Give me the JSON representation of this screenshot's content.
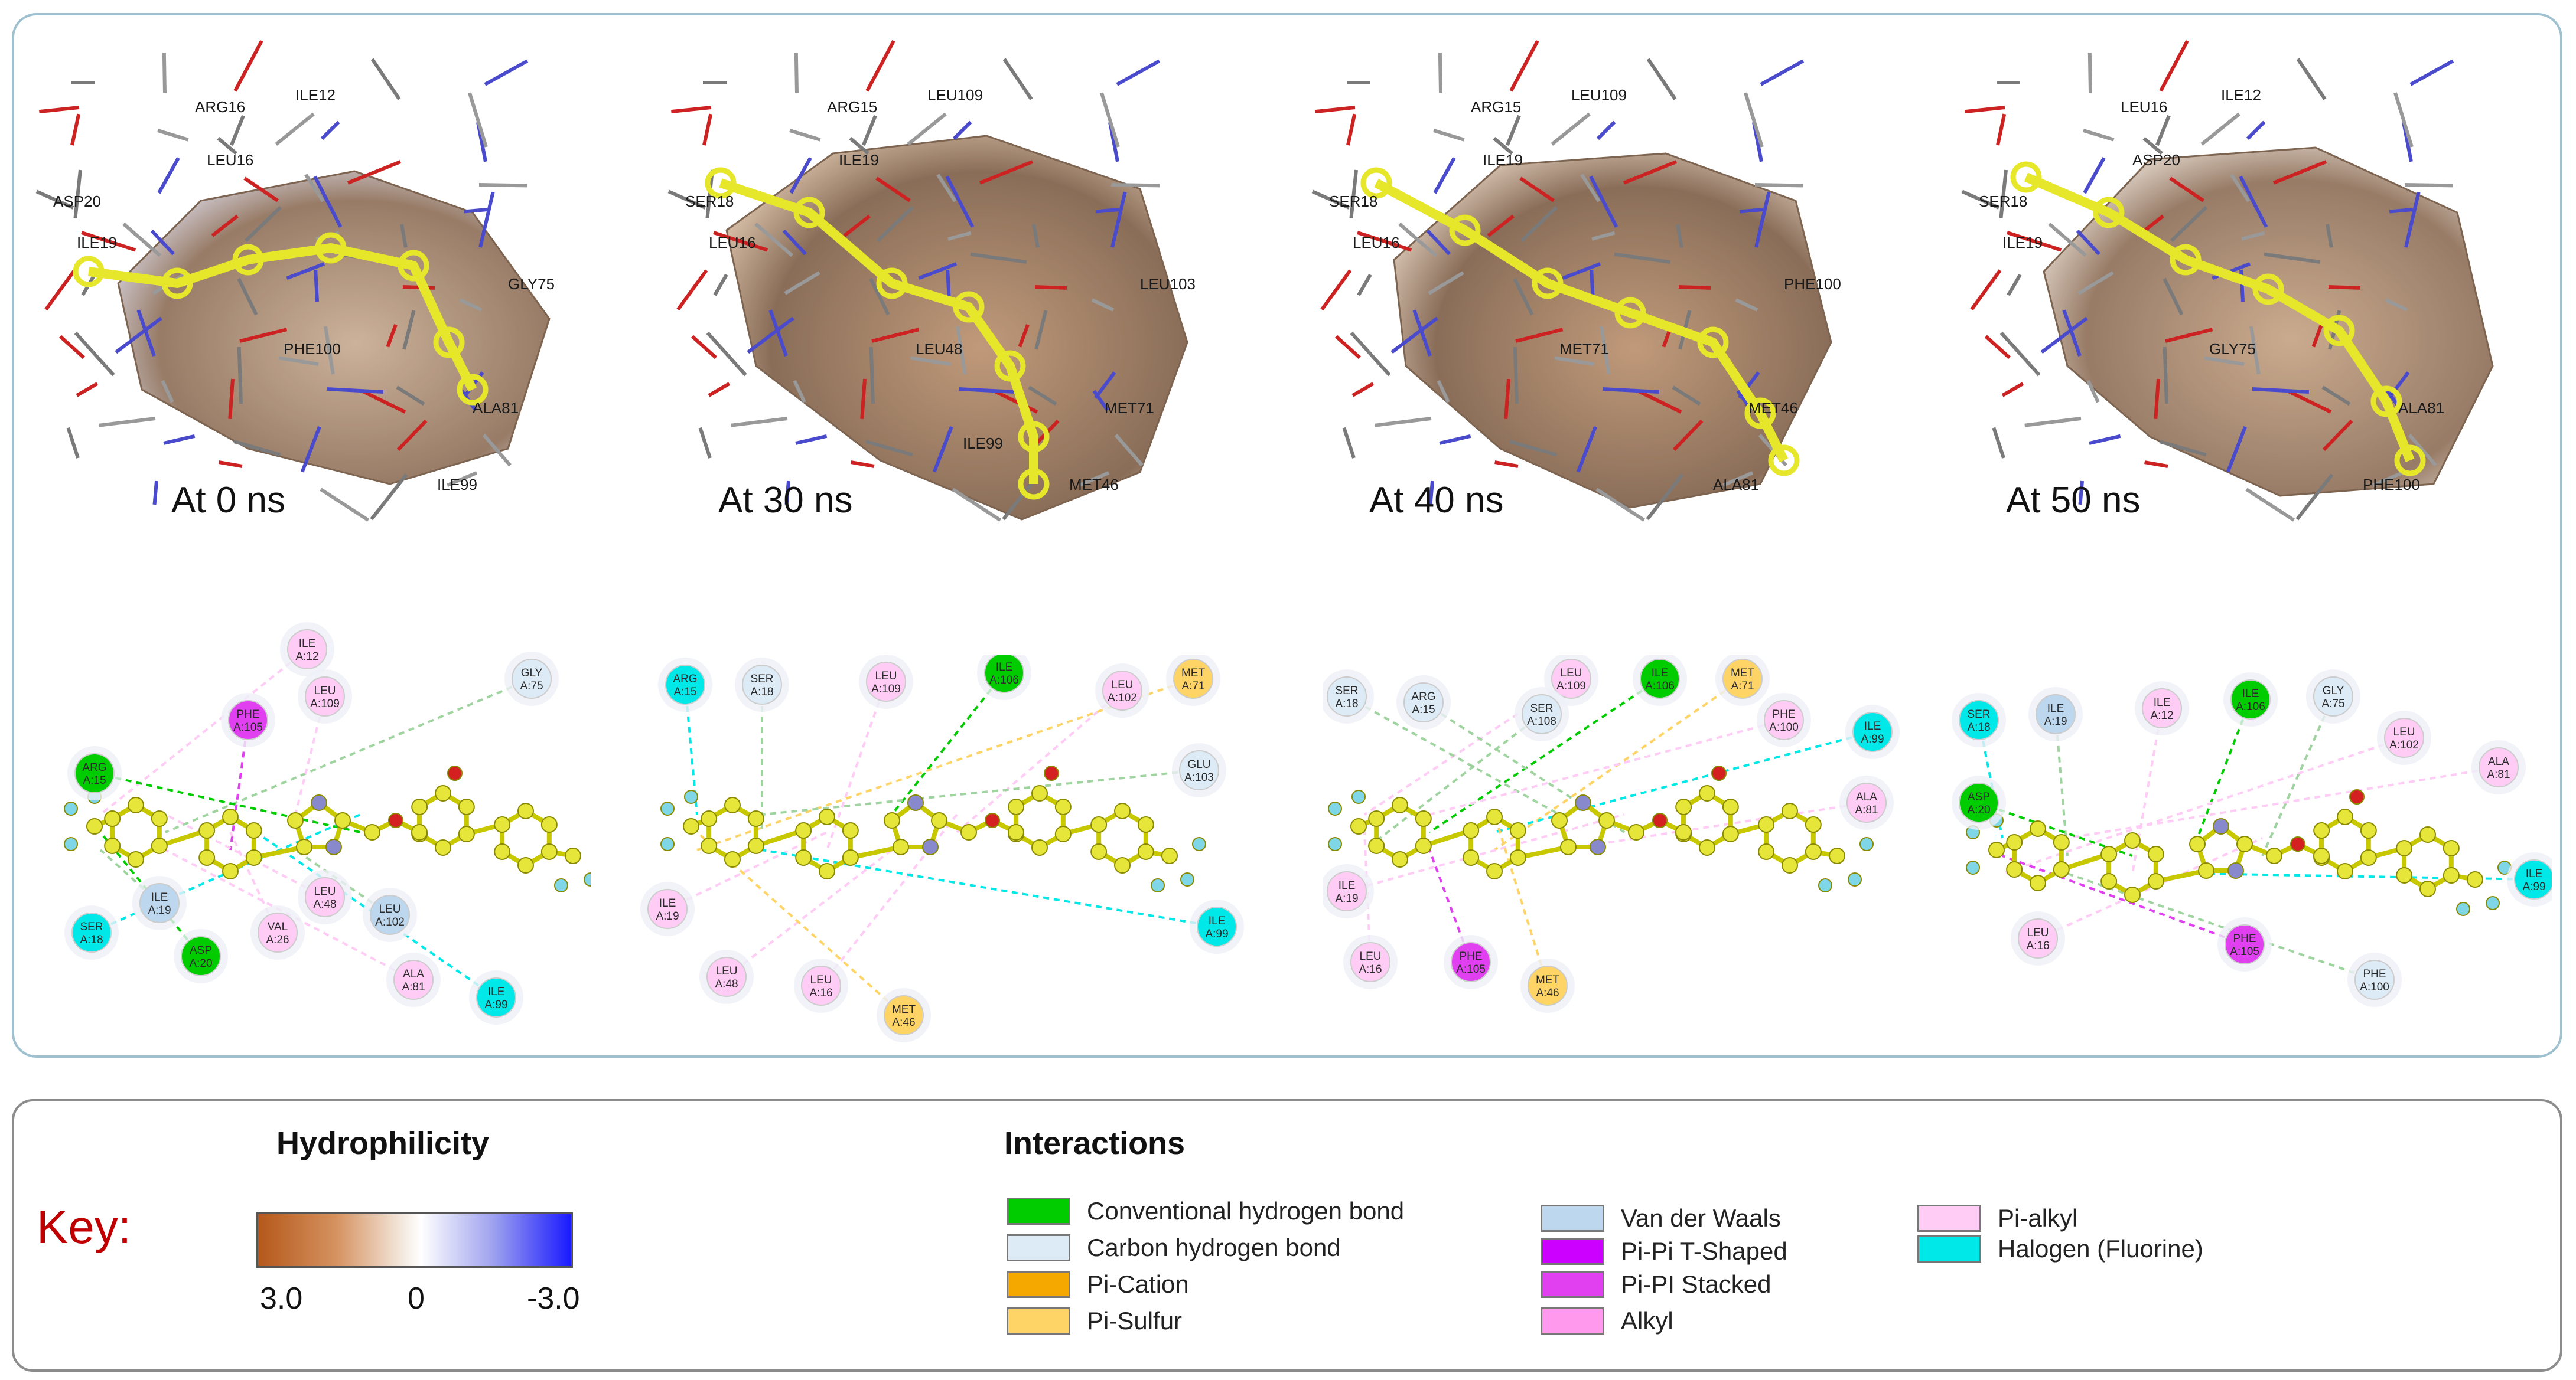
{
  "snapshots": [
    {
      "label": "At 0 ns"
    },
    {
      "label": "At 30 ns"
    },
    {
      "label": "At 40 ns"
    },
    {
      "label": "At 50 ns"
    }
  ],
  "structure_labels": [
    [
      "ASP20",
      "ARG16",
      "ILE12",
      "LEU16",
      "ILE19",
      "PHE100",
      "ALA81",
      "ILE99",
      "GLY75"
    ],
    [
      "SER18",
      "ARG15",
      "LEU109",
      "ILE19",
      "LEU16",
      "LEU48",
      "MET71",
      "MET46",
      "LEU103",
      "ILE99"
    ],
    [
      "SER18",
      "ARG15",
      "LEU109",
      "ILE19",
      "LEU16",
      "MET71",
      "MET46",
      "ALA81",
      "PHE100"
    ],
    [
      "SER18",
      "LEU16",
      "ILE12",
      "ASP20",
      "ILE19",
      "GLY75",
      "ALA81",
      "PHE100"
    ]
  ],
  "residue_maps": [
    [
      {
        "name": "ILE",
        "id": "A:12",
        "type": "pi_alkyl"
      },
      {
        "name": "GLY",
        "id": "A:75",
        "type": "carbon_hb"
      },
      {
        "name": "PHE",
        "id": "A:105",
        "type": "pi_pi_stacked"
      },
      {
        "name": "LEU",
        "id": "A:109",
        "type": "pi_alkyl"
      },
      {
        "name": "ARG",
        "id": "A:15",
        "type": "conventional_hb"
      },
      {
        "name": "ILE",
        "id": "A:19",
        "type": "van_der_waals"
      },
      {
        "name": "LEU",
        "id": "A:48",
        "type": "pi_alkyl"
      },
      {
        "name": "VAL",
        "id": "A:26",
        "type": "pi_alkyl"
      },
      {
        "name": "LEU",
        "id": "A:102",
        "type": "van_der_waals"
      },
      {
        "name": "SER",
        "id": "A:18",
        "type": "halogen"
      },
      {
        "name": "ASP",
        "id": "A:20",
        "type": "conventional_hb"
      },
      {
        "name": "ALA",
        "id": "A:81",
        "type": "pi_alkyl"
      },
      {
        "name": "ILE",
        "id": "A:99",
        "type": "halogen"
      }
    ],
    [
      {
        "name": "ARG",
        "id": "A:15",
        "type": "halogen"
      },
      {
        "name": "SER",
        "id": "A:18",
        "type": "carbon_hb"
      },
      {
        "name": "LEU",
        "id": "A:109",
        "type": "pi_alkyl"
      },
      {
        "name": "ILE",
        "id": "A:106",
        "type": "conventional_hb"
      },
      {
        "name": "LEU",
        "id": "A:102",
        "type": "pi_alkyl"
      },
      {
        "name": "MET",
        "id": "A:71",
        "type": "pi_sulfur"
      },
      {
        "name": "GLU",
        "id": "A:103",
        "type": "carbon_hb"
      },
      {
        "name": "ILE",
        "id": "A:19",
        "type": "pi_alkyl"
      },
      {
        "name": "LEU",
        "id": "A:48",
        "type": "pi_alkyl"
      },
      {
        "name": "LEU",
        "id": "A:16",
        "type": "pi_alkyl"
      },
      {
        "name": "MET",
        "id": "A:46",
        "type": "pi_sulfur"
      },
      {
        "name": "ILE",
        "id": "A:99",
        "type": "halogen"
      }
    ],
    [
      {
        "name": "LEU",
        "id": "A:109",
        "type": "pi_alkyl"
      },
      {
        "name": "ILE",
        "id": "A:106",
        "type": "conventional_hb"
      },
      {
        "name": "MET",
        "id": "A:71",
        "type": "pi_sulfur"
      },
      {
        "name": "SER",
        "id": "A:18",
        "type": "carbon_hb"
      },
      {
        "name": "ARG",
        "id": "A:15",
        "type": "carbon_hb"
      },
      {
        "name": "SER",
        "id": "A:108",
        "type": "carbon_hb"
      },
      {
        "name": "PHE",
        "id": "A:100",
        "type": "pi_alkyl"
      },
      {
        "name": "ILE",
        "id": "A:99",
        "type": "halogen"
      },
      {
        "name": "ALA",
        "id": "A:81",
        "type": "pi_alkyl"
      },
      {
        "name": "ILE",
        "id": "A:19",
        "type": "pi_alkyl"
      },
      {
        "name": "LEU",
        "id": "A:16",
        "type": "pi_alkyl"
      },
      {
        "name": "PHE",
        "id": "A:105",
        "type": "pi_pi_stacked"
      },
      {
        "name": "MET",
        "id": "A:46",
        "type": "pi_sulfur"
      }
    ],
    [
      {
        "name": "SER",
        "id": "A:18",
        "type": "halogen"
      },
      {
        "name": "ILE",
        "id": "A:19",
        "type": "van_der_waals"
      },
      {
        "name": "ILE",
        "id": "A:12",
        "type": "pi_alkyl"
      },
      {
        "name": "ILE",
        "id": "A:106",
        "type": "conventional_hb"
      },
      {
        "name": "GLY",
        "id": "A:75",
        "type": "carbon_hb"
      },
      {
        "name": "LEU",
        "id": "A:102",
        "type": "pi_alkyl"
      },
      {
        "name": "ALA",
        "id": "A:81",
        "type": "pi_alkyl"
      },
      {
        "name": "ASP",
        "id": "A:20",
        "type": "conventional_hb"
      },
      {
        "name": "ILE",
        "id": "A:99",
        "type": "halogen"
      },
      {
        "name": "LEU",
        "id": "A:16",
        "type": "pi_alkyl"
      },
      {
        "name": "PHE",
        "id": "A:105",
        "type": "pi_pi_stacked"
      },
      {
        "name": "PHE",
        "id": "A:100",
        "type": "carbon_hb"
      }
    ]
  ],
  "key": {
    "title": "Key:",
    "hydrophilicity": {
      "title": "Hydrophilicity",
      "ticks": [
        "3.0",
        "0",
        "-3.0"
      ],
      "gradient": [
        "#b5581b",
        "#ffffff",
        "#1a1aff"
      ]
    },
    "interactions": {
      "title": "Interactions",
      "items": [
        {
          "key": "conventional_hb",
          "label": "Conventional hydrogen bond",
          "color": "#00cc00"
        },
        {
          "key": "carbon_hb",
          "label": "Carbon hydrogen bond",
          "color": "#dcebf5"
        },
        {
          "key": "pi_cation",
          "label": "Pi-Cation",
          "color": "#f5a800"
        },
        {
          "key": "pi_sulfur",
          "label": "Pi-Sulfur",
          "color": "#ffd466"
        },
        {
          "key": "van_der_waals",
          "label": "Van der Waals",
          "color": "#bcd7ee"
        },
        {
          "key": "pi_pi_t",
          "label": "Pi-Pi T-Shaped",
          "color": "#cc00ff"
        },
        {
          "key": "pi_pi_stacked",
          "label": "Pi-PI Stacked",
          "color": "#e040f0"
        },
        {
          "key": "alkyl",
          "label": "Alkyl",
          "color": "#ff99ee"
        },
        {
          "key": "pi_alkyl",
          "label": "Pi-alkyl",
          "color": "#ffccf5"
        },
        {
          "key": "halogen",
          "label": "Halogen (Fluorine)",
          "color": "#00e8e8"
        }
      ]
    }
  }
}
